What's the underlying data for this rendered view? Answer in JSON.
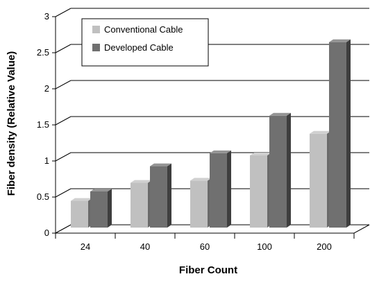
{
  "chart_data": {
    "type": "bar",
    "title": "",
    "xlabel": "Fiber Count",
    "ylabel": "Fiber density (Relative Value)",
    "categories": [
      "24",
      "40",
      "60",
      "100",
      "200"
    ],
    "series": [
      {
        "name": "Conventional Cable",
        "values": [
          0.37,
          0.62,
          0.65,
          1.0,
          1.3
        ],
        "color": "#c0c0c0"
      },
      {
        "name": "Developed Cable",
        "values": [
          0.5,
          0.85,
          1.03,
          1.55,
          2.57
        ],
        "color": "#707070"
      }
    ],
    "y_ticks": [
      "0",
      "0.5",
      "1",
      "1.5",
      "2",
      "2.5",
      "3"
    ],
    "ylim": [
      0,
      3
    ],
    "grid": true,
    "legend_position": "top-left",
    "style": "3d-bars"
  }
}
